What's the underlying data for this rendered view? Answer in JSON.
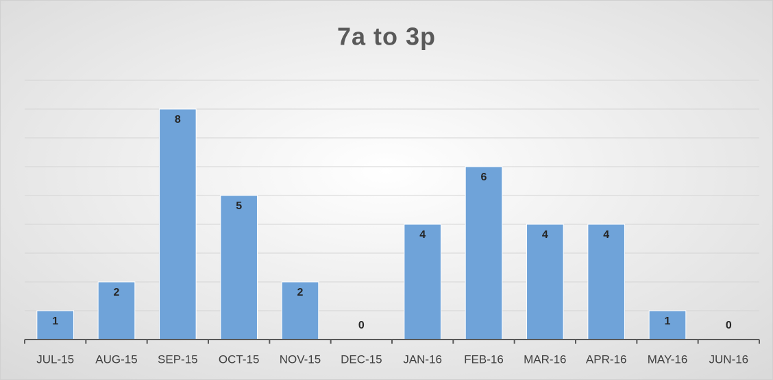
{
  "chart_data": {
    "type": "bar",
    "title": "7a to 3p",
    "categories": [
      "JUL-15",
      "AUG-15",
      "SEP-15",
      "OCT-15",
      "NOV-15",
      "DEC-15",
      "JAN-16",
      "FEB-16",
      "MAR-16",
      "APR-16",
      "MAY-16",
      "JUN-16"
    ],
    "values": [
      1,
      2,
      8,
      5,
      2,
      0,
      4,
      6,
      4,
      4,
      1,
      0
    ],
    "color": "#6fa3d9",
    "ylim": [
      0,
      9
    ],
    "yticks": [
      0,
      1,
      2,
      3,
      4,
      5,
      6,
      7,
      8,
      9
    ],
    "grid": true
  }
}
